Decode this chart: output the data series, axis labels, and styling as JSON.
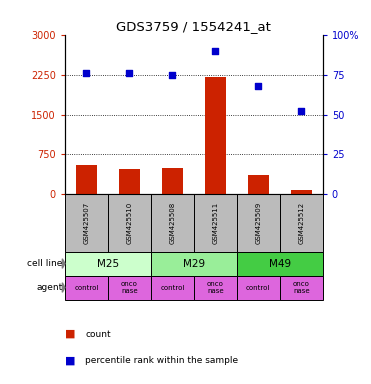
{
  "title": "GDS3759 / 1554241_at",
  "samples": [
    "GSM425507",
    "GSM425510",
    "GSM425508",
    "GSM425511",
    "GSM425509",
    "GSM425512"
  ],
  "bar_values": [
    550,
    480,
    490,
    2200,
    370,
    80
  ],
  "scatter_values": [
    76,
    76,
    75,
    90,
    68,
    52
  ],
  "left_ylim": [
    0,
    3000
  ],
  "left_yticks": [
    0,
    750,
    1500,
    2250,
    3000
  ],
  "left_yticklabels": [
    "0",
    "750",
    "1500",
    "2250",
    "3000"
  ],
  "right_ylim": [
    0,
    100
  ],
  "right_yticks": [
    0,
    25,
    50,
    75,
    100
  ],
  "right_yticklabels": [
    "0",
    "25",
    "50",
    "75",
    "100%"
  ],
  "bar_color": "#cc2200",
  "scatter_color": "#0000cc",
  "cell_lines": [
    "M25",
    "M29",
    "M49"
  ],
  "cell_line_spans": [
    [
      0,
      2
    ],
    [
      2,
      4
    ],
    [
      4,
      6
    ]
  ],
  "cell_line_colors": [
    "#ccffcc",
    "#99ee99",
    "#44cc44"
  ],
  "agents": [
    "control",
    "onconase",
    "control",
    "onconase",
    "control",
    "onconase"
  ],
  "sample_bg_color": "#bbbbbb",
  "legend_count_color": "#cc2200",
  "legend_pct_color": "#0000cc",
  "bar_width": 0.5,
  "n_samples": 6
}
